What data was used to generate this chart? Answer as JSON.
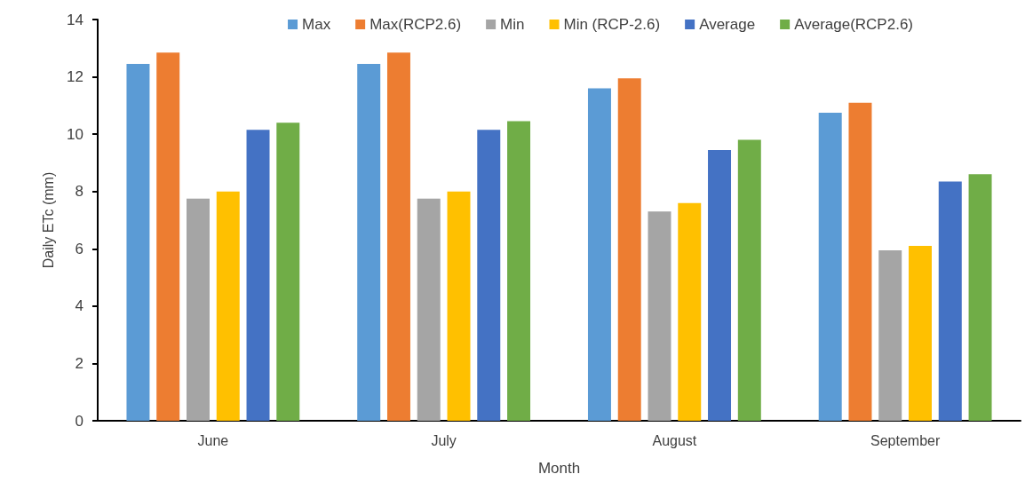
{
  "chart_data": {
    "type": "bar",
    "xlabel": "Month",
    "ylabel": "Daily ETc (mm)",
    "categories": [
      "June",
      "July",
      "August",
      "September"
    ],
    "series": [
      {
        "name": "Max",
        "color": "#5b9bd5",
        "values": [
          12.45,
          12.45,
          11.6,
          10.75
        ]
      },
      {
        "name": "Max(RCP2.6)",
        "color": "#ed7d31",
        "values": [
          12.85,
          12.85,
          11.95,
          11.1
        ]
      },
      {
        "name": "Min",
        "color": "#a5a5a5",
        "values": [
          7.75,
          7.75,
          7.3,
          5.95
        ]
      },
      {
        "name": "Min (RCP-2.6)",
        "color": "#ffc000",
        "values": [
          8.0,
          8.0,
          7.6,
          6.1
        ]
      },
      {
        "name": "Average",
        "color": "#4472c4",
        "values": [
          10.15,
          10.15,
          9.45,
          8.35
        ]
      },
      {
        "name": "Average(RCP2.6)",
        "color": "#70ad47",
        "values": [
          10.4,
          10.45,
          9.8,
          8.6
        ]
      }
    ],
    "ylim": [
      0,
      14
    ],
    "yticks": [
      0,
      2,
      4,
      6,
      8,
      10,
      12,
      14
    ],
    "grid": false,
    "legend": "top right"
  }
}
